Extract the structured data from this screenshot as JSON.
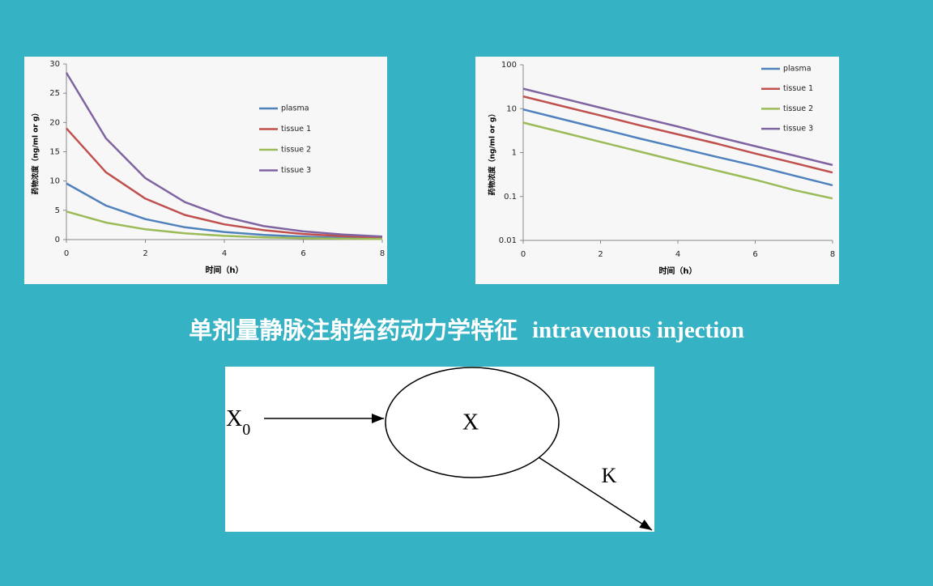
{
  "chart_data": [
    {
      "type": "line",
      "x": [
        0,
        1,
        2,
        3,
        4,
        5,
        6,
        7,
        8
      ],
      "xlim": [
        0,
        8
      ],
      "xticks": [
        0,
        2,
        4,
        6,
        8
      ],
      "ylim": [
        0,
        30
      ],
      "yticks": [
        0,
        5,
        10,
        15,
        20,
        25,
        30
      ],
      "xlabel": "时间（h）",
      "ylabel": "药物浓度（ng/ml or g）",
      "log_scale": false,
      "grid": false,
      "legend": "right",
      "series": [
        {
          "name": "plasma",
          "color": "#4f81bd",
          "values": [
            9.6,
            5.8,
            3.5,
            2.1,
            1.3,
            0.8,
            0.5,
            0.3,
            0.18
          ]
        },
        {
          "name": "tissue 1",
          "color": "#c0504d",
          "values": [
            19,
            11.5,
            7,
            4.2,
            2.6,
            1.6,
            0.95,
            0.58,
            0.35
          ]
        },
        {
          "name": "tissue 2",
          "color": "#9bbb59",
          "values": [
            4.8,
            2.9,
            1.75,
            1.06,
            0.64,
            0.39,
            0.24,
            0.14,
            0.09
          ]
        },
        {
          "name": "tissue 3",
          "color": "#8064a2",
          "values": [
            28.5,
            17.3,
            10.5,
            6.4,
            3.9,
            2.3,
            1.4,
            0.86,
            0.52
          ]
        }
      ]
    },
    {
      "type": "line",
      "x": [
        0,
        1,
        2,
        3,
        4,
        5,
        6,
        7,
        8
      ],
      "xlim": [
        0,
        8
      ],
      "xticks": [
        0,
        2,
        4,
        6,
        8
      ],
      "ylim": [
        0.01,
        100
      ],
      "yticks": [
        0.01,
        0.1,
        1,
        10,
        100
      ],
      "xlabel": "时间（h）",
      "ylabel": "药物浓度（ng/ml or g）",
      "log_scale": true,
      "grid": false,
      "legend": "upper right",
      "series": [
        {
          "name": "plasma",
          "color": "#4f81bd",
          "values": [
            9.6,
            5.8,
            3.5,
            2.1,
            1.3,
            0.8,
            0.5,
            0.3,
            0.18
          ]
        },
        {
          "name": "tissue 1",
          "color": "#c0504d",
          "values": [
            19,
            11.5,
            7,
            4.2,
            2.6,
            1.6,
            0.95,
            0.58,
            0.35
          ]
        },
        {
          "name": "tissue 2",
          "color": "#9bbb59",
          "values": [
            4.8,
            2.9,
            1.75,
            1.06,
            0.64,
            0.39,
            0.24,
            0.14,
            0.09
          ]
        },
        {
          "name": "tissue 3",
          "color": "#8064a2",
          "values": [
            28.5,
            17.3,
            10.5,
            6.4,
            3.9,
            2.3,
            1.4,
            0.86,
            0.52
          ]
        }
      ]
    }
  ],
  "slide": {
    "title_cn": "单剂量静脉注射给药动力学特征",
    "title_en": "intravenous injection"
  },
  "diagram": {
    "input": {
      "text": "X",
      "subscript": "0"
    },
    "compartment": "X",
    "elimination": "K"
  }
}
